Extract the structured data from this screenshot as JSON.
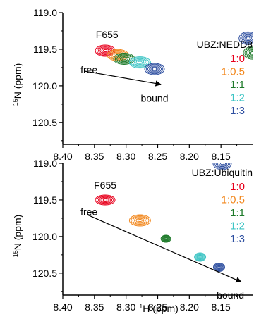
{
  "figure": {
    "y_label_prefix": "15",
    "y_label_main": "N (ppm)",
    "x_label_prefix": "1",
    "x_label_main": "H (ppm)"
  },
  "chart_data": [
    {
      "type": "scatter",
      "panel": "top",
      "xlim": [
        8.4,
        8.1
      ],
      "ylim": [
        119.0,
        120.8
      ],
      "x_reversed": true,
      "y_reversed": true,
      "x_ticks": [
        "8.40",
        "8.35",
        "8.30",
        "8.25",
        "8.20",
        "8.15"
      ],
      "y_ticks": [
        "119.0",
        "119.5",
        "120.0",
        "120.5"
      ],
      "xlabel": "",
      "ylabel": "",
      "legend_title": "UBZ:NEDD8",
      "peak_label": "F655",
      "arrow_start_label": "free",
      "arrow_end_label": "bound",
      "series": [
        {
          "name": "1:0",
          "color": "#e8001c",
          "x": 8.333,
          "y": 119.52
        },
        {
          "name": "1:0.5",
          "color": "#f2871c",
          "x": 8.313,
          "y": 119.58
        },
        {
          "name": "1:1",
          "color": "#1e7a2a",
          "x": 8.303,
          "y": 119.63
        },
        {
          "name": "1:2",
          "color": "#3cc4c4",
          "x": 8.278,
          "y": 119.68
        },
        {
          "name": "1:3",
          "color": "#2e4fa0",
          "x": 8.255,
          "y": 119.77
        }
      ],
      "edge_peaks": [
        {
          "color": "#2e4fa0",
          "x": 8.107,
          "y": 119.35
        },
        {
          "color": "#1e7a2a",
          "x": 8.1,
          "y": 119.55
        }
      ]
    },
    {
      "type": "scatter",
      "panel": "bottom",
      "xlim": [
        8.4,
        8.1
      ],
      "ylim": [
        119.0,
        120.8
      ],
      "x_reversed": true,
      "y_reversed": true,
      "x_ticks": [
        "8.40",
        "8.35",
        "8.30",
        "8.25",
        "8.20",
        "8.15"
      ],
      "y_ticks": [
        "119.0",
        "119.5",
        "120.0",
        "120.5"
      ],
      "xlabel": "",
      "ylabel": "",
      "legend_title": "UBZ:Ubiquitin",
      "peak_label": "F655",
      "arrow_start_label": "free",
      "arrow_end_label": "bound",
      "series": [
        {
          "name": "1:0",
          "color": "#e8001c",
          "x": 8.333,
          "y": 119.5
        },
        {
          "name": "1:0.5",
          "color": "#f2871c",
          "x": 8.278,
          "y": 119.78
        },
        {
          "name": "1:1",
          "color": "#1e7a2a",
          "x": 8.237,
          "y": 120.03
        },
        {
          "name": "1:2",
          "color": "#3cc4c4",
          "x": 8.183,
          "y": 120.28
        },
        {
          "name": "1:3",
          "color": "#2e4fa0",
          "x": 8.153,
          "y": 120.42
        }
      ],
      "edge_peaks": [
        {
          "color": "#2e4fa0",
          "x": 8.148,
          "y": 119.0
        }
      ]
    }
  ]
}
